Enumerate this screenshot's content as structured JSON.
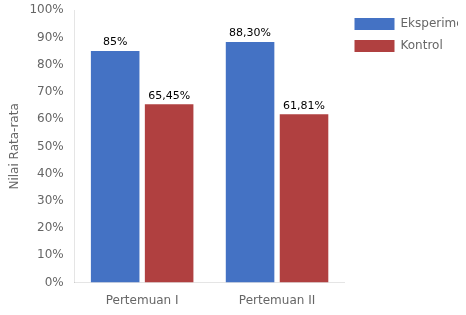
{
  "chart_data": {
    "type": "bar",
    "categories": [
      "Pertemuan I",
      "Pertemuan II"
    ],
    "series": [
      {
        "name": "Eksperimen",
        "color": "#4472C4",
        "values": [
          0.85,
          0.883
        ],
        "value_labels": [
          "85%",
          "88,30%"
        ]
      },
      {
        "name": "Kontrol",
        "color": "#B04040",
        "values": [
          0.6545,
          0.6181
        ],
        "value_labels": [
          "65,45%",
          "61,81%"
        ]
      }
    ],
    "y_label": "Nilai Rata-rata",
    "ylim": [
      0,
      1.0
    ],
    "yticks": [
      {
        "value": 0.0,
        "label": "0%"
      },
      {
        "value": 0.1,
        "label": "10%"
      },
      {
        "value": 0.2,
        "label": "20%"
      },
      {
        "value": 0.3,
        "label": "30%"
      },
      {
        "value": 0.4,
        "label": "40%"
      },
      {
        "value": 0.5,
        "label": "50%"
      },
      {
        "value": 0.6,
        "label": "60%"
      },
      {
        "value": 0.7,
        "label": "70%"
      },
      {
        "value": 0.8,
        "label": "80%"
      },
      {
        "value": 0.9,
        "label": "90%"
      },
      {
        "value": 1.0,
        "label": "100%"
      }
    ],
    "grid": false,
    "legend": "right",
    "data_labels": true,
    "background_color": "#FFFFFF"
  }
}
